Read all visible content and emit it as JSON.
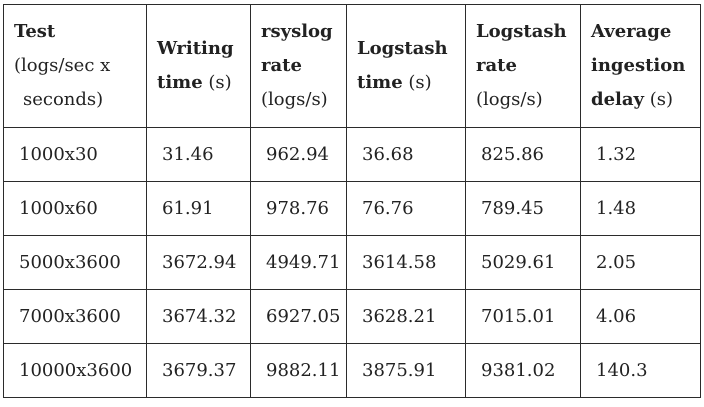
{
  "table": {
    "headers": [
      {
        "lines": [
          {
            "bold": "Test",
            "normal": ""
          },
          {
            "bold": "",
            "normal": "(logs/sec x"
          },
          {
            "bold": "",
            "normal": " seconds)"
          }
        ]
      },
      {
        "lines": [
          {
            "bold": "Writing",
            "normal": ""
          },
          {
            "bold": "time",
            "normal": " (s)"
          }
        ]
      },
      {
        "lines": [
          {
            "bold": "rsyslog",
            "normal": ""
          },
          {
            "bold": "rate",
            "normal": ""
          },
          {
            "bold": "",
            "normal": "(logs/s)"
          }
        ]
      },
      {
        "lines": [
          {
            "bold": "Logstash",
            "normal": ""
          },
          {
            "bold": "time",
            "normal": " (s)"
          }
        ]
      },
      {
        "lines": [
          {
            "bold": "Logstash",
            "normal": ""
          },
          {
            "bold": "rate",
            "normal": ""
          },
          {
            "bold": "",
            "normal": "(logs/s)"
          }
        ]
      },
      {
        "lines": [
          {
            "bold": "Average",
            "normal": ""
          },
          {
            "bold": "ingestion",
            "normal": ""
          },
          {
            "bold": "delay",
            "normal": " (s)"
          }
        ]
      }
    ],
    "rows": [
      [
        "1000x30",
        "31.46",
        "962.94",
        "36.68",
        "825.86",
        "1.32"
      ],
      [
        "1000x60",
        "61.91",
        "978.76",
        "76.76",
        "789.45",
        "1.48"
      ],
      [
        "5000x3600",
        "3672.94",
        "4949.71",
        "3614.58",
        "5029.61",
        "2.05"
      ],
      [
        "7000x3600",
        "3674.32",
        "6927.05",
        "3628.21",
        "7015.01",
        "4.06"
      ],
      [
        "10000x3600",
        "3679.37",
        "9882.11",
        "3875.91",
        "9381.02",
        "140.3"
      ]
    ]
  }
}
